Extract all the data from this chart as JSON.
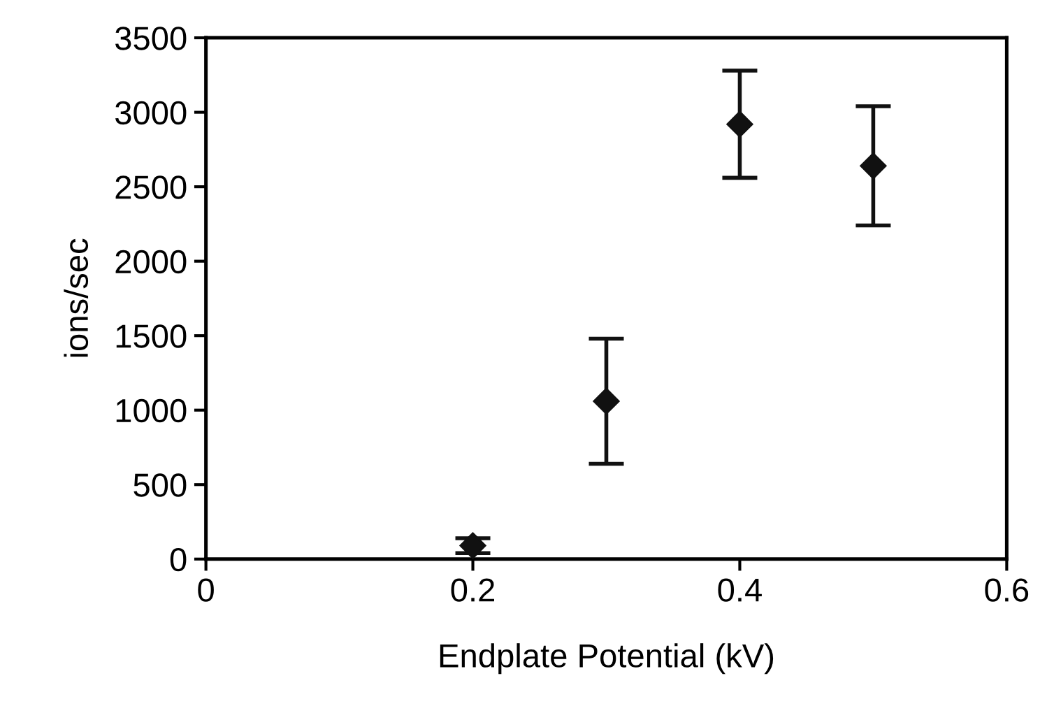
{
  "chart_data": {
    "type": "scatter",
    "xlabel": "Endplate Potential (kV)",
    "ylabel": "ions/sec",
    "x": [
      0.2,
      0.3,
      0.4,
      0.5
    ],
    "series": [
      {
        "color": "#111111",
        "values": [
          90,
          1060,
          2920,
          2640
        ],
        "errors": [
          50,
          420,
          360,
          400
        ]
      }
    ],
    "marker": "diamond",
    "xlim": [
      0,
      0.6
    ],
    "xticks": [
      0,
      0.2,
      0.4,
      0.6
    ],
    "ylim": [
      0,
      3500
    ],
    "yticks": [
      0,
      500,
      1000,
      1500,
      2000,
      2500,
      3000,
      3500
    ],
    "grid": false,
    "legend": false
  }
}
